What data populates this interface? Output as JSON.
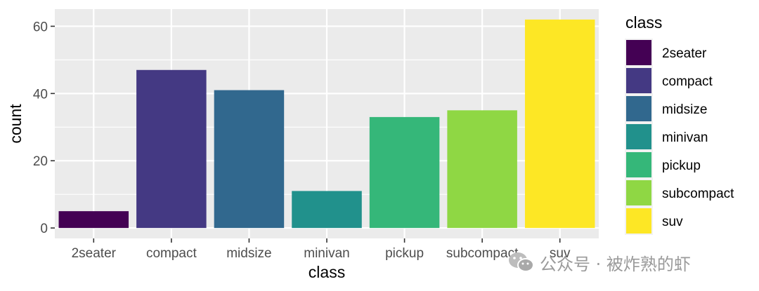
{
  "chart_data": {
    "type": "bar",
    "xlabel": "class",
    "ylabel": "count",
    "categories": [
      "2seater",
      "compact",
      "midsize",
      "minivan",
      "pickup",
      "subcompact",
      "suv"
    ],
    "values": [
      5,
      47,
      41,
      11,
      33,
      35,
      62
    ],
    "colors": [
      "#440154",
      "#443983",
      "#31688e",
      "#21918c",
      "#35b779",
      "#8fd744",
      "#fde725"
    ],
    "ylim": [
      -3.1,
      65.1
    ],
    "yticks": [
      0,
      20,
      40,
      60
    ],
    "grid": true,
    "legend": {
      "title": "class",
      "position": "right"
    },
    "panel_background": "#ebebeb",
    "grid_color": "#ffffff"
  },
  "watermark": {
    "text": "公众号 · 被炸熟的虾",
    "icon": "wechat-icon"
  }
}
